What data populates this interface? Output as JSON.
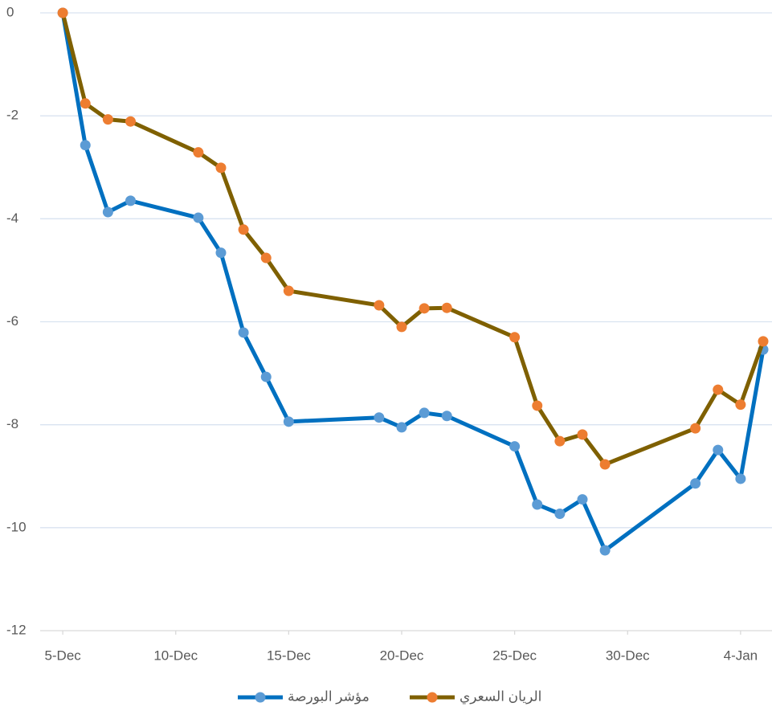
{
  "chart_data": {
    "type": "line",
    "x": [
      "5-Dec",
      "6-Dec",
      "7-Dec",
      "8-Dec",
      "11-Dec",
      "12-Dec",
      "13-Dec",
      "14-Dec",
      "15-Dec",
      "19-Dec",
      "20-Dec",
      "21-Dec",
      "22-Dec",
      "25-Dec",
      "26-Dec",
      "27-Dec",
      "28-Dec",
      "29-Dec",
      "2-Jan",
      "3-Jan",
      "4-Jan",
      "5-Jan"
    ],
    "series": [
      {
        "name": "مؤشر البورصة",
        "color": "#0070c0",
        "marker_color": "#5b9bd5",
        "values": [
          0,
          -2.57,
          -3.87,
          -3.65,
          -3.98,
          -4.66,
          -6.21,
          -7.07,
          -7.94,
          -7.86,
          -8.05,
          -7.77,
          -7.83,
          -8.42,
          -9.55,
          -9.73,
          -9.45,
          -10.44,
          -9.14,
          -8.49,
          -9.05,
          -6.54
        ]
      },
      {
        "name": "الريان السعري",
        "color": "#7f6000",
        "marker_color": "#ed7d31",
        "values": [
          0,
          -1.76,
          -2.07,
          -2.11,
          -2.71,
          -3.01,
          -4.21,
          -4.76,
          -5.4,
          -5.68,
          -6.1,
          -5.74,
          -5.73,
          -6.3,
          -7.63,
          -8.32,
          -8.19,
          -8.77,
          -8.07,
          -7.32,
          -7.61,
          -6.38
        ]
      }
    ],
    "xlim": [
      "4-Dec",
      "5-Jan"
    ],
    "xticks": [
      "5-Dec",
      "10-Dec",
      "15-Dec",
      "20-Dec",
      "25-Dec",
      "30-Dec",
      "4-Jan"
    ],
    "ylim": [
      -12,
      0
    ],
    "yticks": [
      -12,
      -10,
      -8,
      -6,
      -4,
      -2,
      0
    ],
    "grid": true,
    "legend": "bottom"
  }
}
